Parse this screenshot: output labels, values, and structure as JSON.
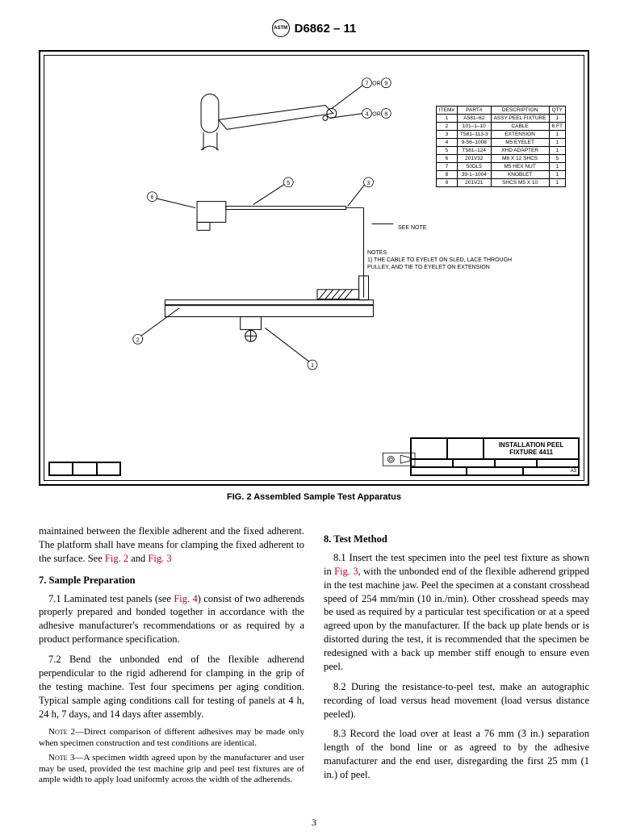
{
  "header": {
    "logo_text": "ASTM",
    "title": "D6862 – 11"
  },
  "figure": {
    "parts_table": {
      "headers": [
        "ITEM#",
        "PART#",
        "DESCRIPTION",
        "QTY"
      ],
      "rows": [
        [
          "1",
          "A581–62",
          "ASSY PEEL FIXTURE",
          "1"
        ],
        [
          "2",
          "101–1–10",
          "CABLE",
          "6 FT"
        ],
        [
          "3",
          "T581–113-3",
          "EXTENSION",
          "1"
        ],
        [
          "4",
          "9-56–1008",
          "M5 EYELET",
          "1"
        ],
        [
          "5",
          "T581–124",
          "XHD ADAPTER",
          "1"
        ],
        [
          "6",
          "201V32",
          "M6 X 12 SHCS",
          "5"
        ],
        [
          "7",
          "50DL5",
          "M5 HEX NUT",
          "1"
        ],
        [
          "8",
          "39-1–1004",
          "KNOBLET",
          "1"
        ],
        [
          "9",
          "201V21",
          "SHCS M5 X 10",
          "1"
        ]
      ]
    },
    "see_note": "SEE NOTE",
    "notes_title": "NOTES",
    "note1": "1)  THE CABLE TO EYELET ON SLED, LACE THROUGH PULLEY, AND TIE TO EYELET ON EXTENSION",
    "title_block_label": "INSTALLATION PEEL FIXTURE 4411",
    "caption": "FIG. 2 Assembled Sample Test Apparatus",
    "callouts": {
      "c1": "1",
      "c2": "2",
      "c3": "3",
      "c4": "4",
      "c5": "5",
      "c6": "6",
      "c7": "7",
      "c8": "8",
      "c9": "9",
      "or1": "OR",
      "or2": "OR"
    }
  },
  "body": {
    "left": {
      "p1": "maintained between the flexible adherent and the fixed adherent. The platform shall have means for clamping the fixed adherent to the surface. See ",
      "p1_ref1": "Fig. 2",
      "p1_mid": " and ",
      "p1_ref2": "Fig. 3",
      "h7": "7.  Sample Preparation",
      "p71a": "7.1 Laminated test panels (see ",
      "p71_ref": "Fig. 4",
      "p71b": ") consist of two adherends properly prepared and bonded together in accordance with the adhesive manufacturer's recommendations or as required by a product performance specification.",
      "p72": "7.2 Bend the unbonded end of the flexible adherend perpendicular to the rigid adherend for clamping in the grip of the testing machine. Test four specimens per aging condition. Typical sample aging conditions call for testing of panels at 4 h, 24 h, 7 days, and 14 days after assembly.",
      "n2_label": "Note 2—",
      "n2": "Direct comparison of different adhesives may be made only when specimen construction and test conditions are identical.",
      "n3_label": "Note 3—",
      "n3": "A specimen width agreed upon by the manufacturer and user may be used, provided the test machine grip and peel test fixtures are of ample width to apply load uniformly across the width of the adherends."
    },
    "right": {
      "h8": "8.  Test Method",
      "p81a": "8.1 Insert the test specimen into the peel test fixture as shown in ",
      "p81_ref": "Fig. 3",
      "p81b": ", with the unbonded end of the flexible adherend gripped in the test machine jaw. Peel the specimen at a constant crosshead speed of 254 mm/min (10 in./min). Other crosshead speeds may be used as required by a particular test specification or at a speed agreed upon by the manufacturer. If the back up plate bends or is distorted during the test, it is recommended that the specimen be redesigned with a back up member stiff enough to ensure even peel.",
      "p82": "8.2 During the resistance-to-peel test, make an autographic recording of load versus head movement (load versus distance peeled).",
      "p83": "8.3 Record the load over at least a 76 mm (3 in.) separation length of the bond line or as agreed to by the adhesive manufacturer and the end user, disregarding the first 25 mm (1 in.) of peel."
    }
  },
  "page_number": "3"
}
